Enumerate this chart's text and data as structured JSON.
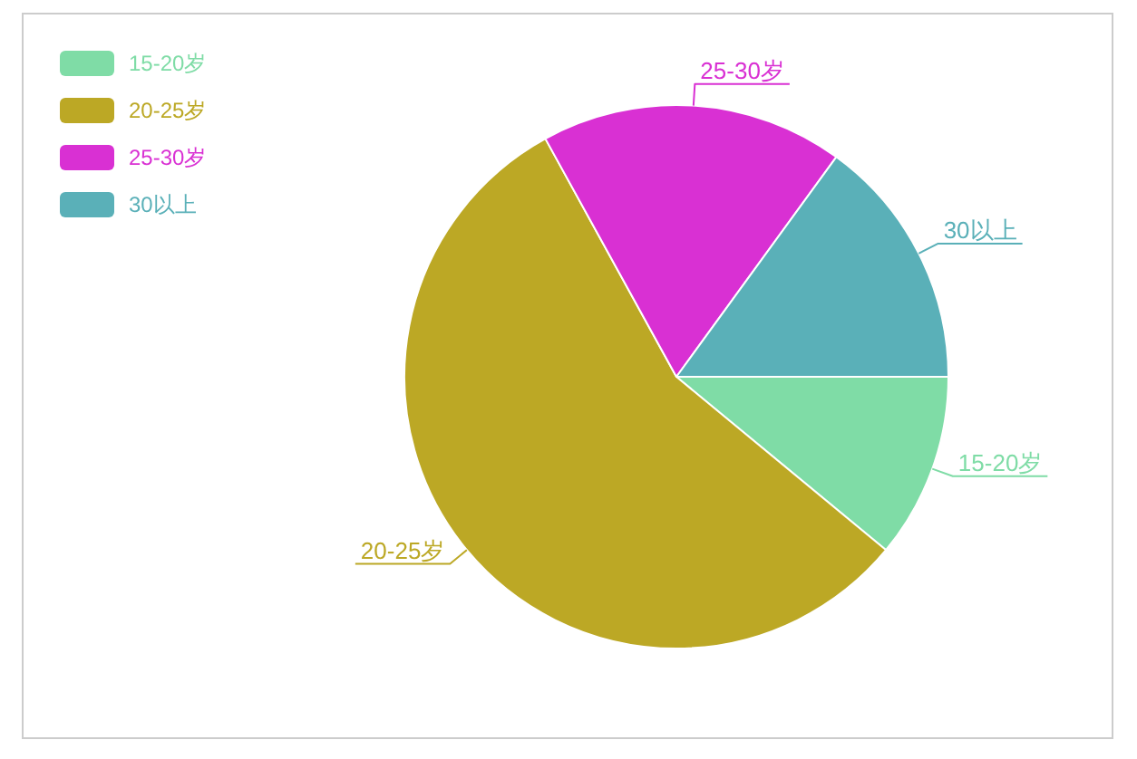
{
  "chart_data": {
    "type": "pie",
    "categories": [
      "15-20岁",
      "20-25岁",
      "25-30岁",
      "30以上"
    ],
    "values": [
      11,
      56,
      18,
      15
    ],
    "colors": [
      "#7fdca6",
      "#bca825",
      "#d930d3",
      "#5ab0b8"
    ],
    "legend": "top left"
  }
}
